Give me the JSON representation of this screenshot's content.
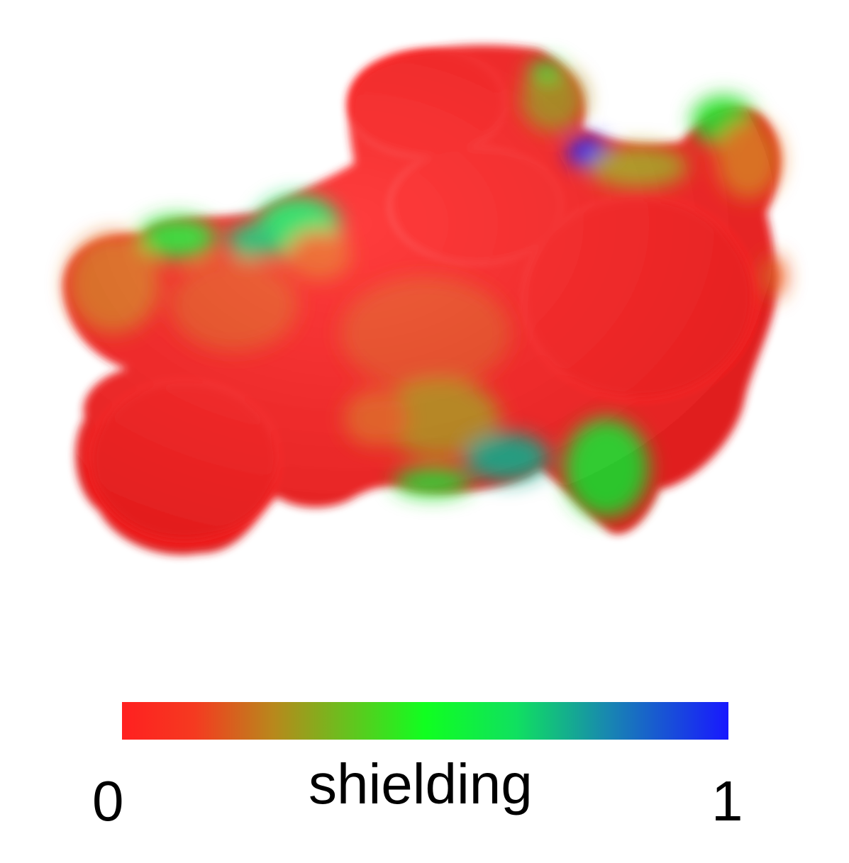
{
  "colorbar": {
    "min_label": "0",
    "max_label": "1",
    "title": "shielding",
    "min_value": 0,
    "max_value": 1,
    "stops": [
      {
        "offset": 0.0,
        "color": "#ff2020"
      },
      {
        "offset": 0.12,
        "color": "#f53a20"
      },
      {
        "offset": 0.25,
        "color": "#b8881c"
      },
      {
        "offset": 0.5,
        "color": "#10ff20"
      },
      {
        "offset": 0.65,
        "color": "#10e060"
      },
      {
        "offset": 0.8,
        "color": "#1888b0"
      },
      {
        "offset": 1.0,
        "color": "#1818ff"
      }
    ]
  },
  "surface_colors": {
    "low": "#ff2020",
    "mid_low": "#f06020",
    "mid": "#b89020",
    "mid_high": "#20ee30",
    "teal": "#20a888",
    "high": "#1a1aff"
  }
}
